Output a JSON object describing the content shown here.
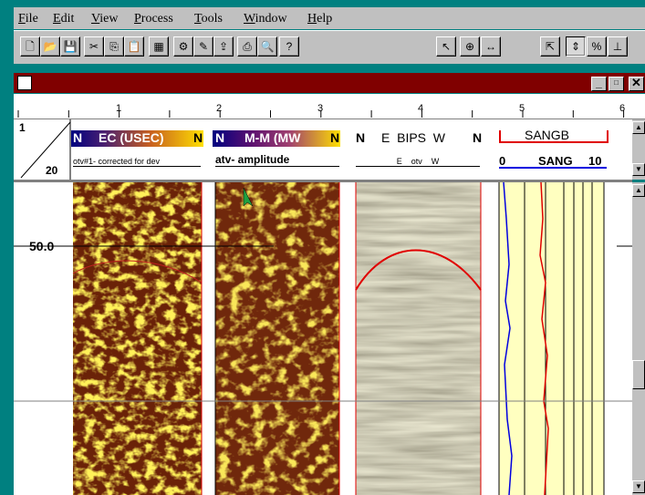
{
  "menu": [
    "File",
    "Edit",
    "View",
    "Process",
    "Tools",
    "Window",
    "Help"
  ],
  "ruler": [
    "1",
    "2",
    "3",
    "4",
    "5",
    "6"
  ],
  "header": {
    "row_start": "1",
    "row_end": "20",
    "track_marker": "N"
  },
  "tracks": [
    {
      "title": "EC (USEC)",
      "subtitle": "otv#1- corrected for dev"
    },
    {
      "title": "M-M (MW",
      "subtitle": "atv- amplitude"
    },
    {
      "title": "E  BIPS  W",
      "subtitle": "E    otv    W"
    },
    {
      "title": "SANGB",
      "subtitle": "SANG",
      "scale_min": "0",
      "scale_max": "10"
    }
  ],
  "depth_label": "50.0"
}
